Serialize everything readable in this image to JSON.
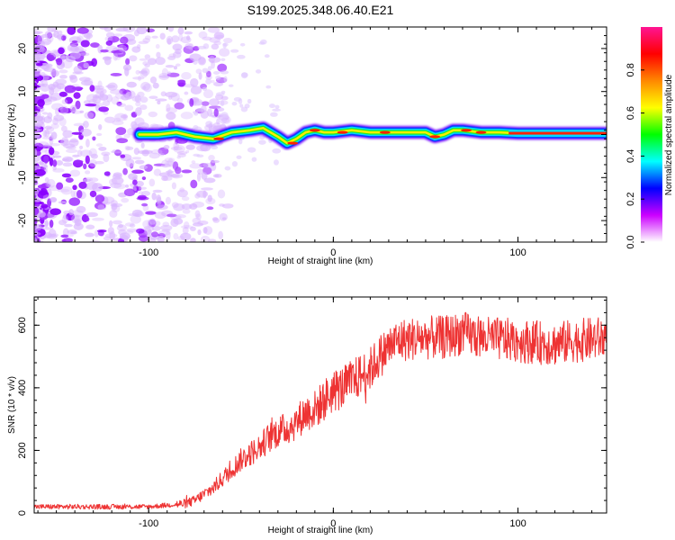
{
  "title": "S199.2025.348.06.40.E21",
  "chart_data": [
    {
      "type": "heatmap",
      "xlabel": "Height of straight line (km)",
      "ylabel": "Frequency (Hz)",
      "xlim": [
        -162,
        148
      ],
      "ylim": [
        -25,
        25
      ],
      "xticks": [
        -100,
        0,
        100
      ],
      "yticks": [
        -20,
        -10,
        0,
        10,
        20
      ],
      "colorbar": {
        "label": "Normalized spectral amplitude",
        "range": [
          0,
          1
        ],
        "ticks": [
          "0.0",
          "0.2",
          "0.4",
          "0.6",
          "0.8"
        ],
        "stops": [
          "#ffffff",
          "#cc00ff",
          "#0000ff",
          "#00ffff",
          "#00ff00",
          "#ffff00",
          "#ff8800",
          "#ff0000",
          "#ff1493"
        ]
      },
      "ridge": {
        "x": [
          -105,
          -95,
          -85,
          -75,
          -65,
          -55,
          -45,
          -38,
          -30,
          -25,
          -20,
          -15,
          -10,
          -5,
          0,
          10,
          20,
          30,
          40,
          50,
          55,
          60,
          65,
          70,
          80,
          90,
          100,
          120,
          148
        ],
        "y": [
          0,
          0,
          0.5,
          -0.5,
          -1,
          0.5,
          1,
          1.5,
          -0.5,
          -2,
          -1,
          0.5,
          1,
          0.5,
          0.5,
          1,
          0.5,
          0.5,
          0.5,
          0.5,
          -0.5,
          0,
          1,
          1,
          0.5,
          0.5,
          0.3,
          0.3,
          0.3
        ]
      }
    },
    {
      "type": "line",
      "xlabel": "Height of straight line (km)",
      "ylabel": "SNR (10 * v/v)",
      "xlim": [
        -162,
        148
      ],
      "ylim": [
        0,
        690
      ],
      "xticks": [
        -100,
        0,
        100
      ],
      "yticks": [
        0,
        200,
        400,
        600
      ],
      "series": [
        {
          "name": "SNR",
          "color": "#ee3333",
          "x": [
            -162,
            -140,
            -120,
            -100,
            -90,
            -80,
            -75,
            -70,
            -65,
            -60,
            -55,
            -50,
            -45,
            -40,
            -35,
            -30,
            -25,
            -20,
            -15,
            -10,
            -5,
            0,
            5,
            10,
            15,
            20,
            25,
            30,
            35,
            40,
            50,
            60,
            70,
            80,
            90,
            100,
            110,
            120,
            130,
            140,
            148
          ],
          "y": [
            20,
            20,
            20,
            20,
            25,
            30,
            40,
            60,
            80,
            110,
            140,
            170,
            190,
            210,
            240,
            260,
            270,
            290,
            320,
            330,
            360,
            390,
            400,
            420,
            440,
            460,
            500,
            530,
            550,
            555,
            560,
            560,
            575,
            560,
            555,
            550,
            545,
            540,
            550,
            555,
            560
          ]
        }
      ]
    }
  ]
}
